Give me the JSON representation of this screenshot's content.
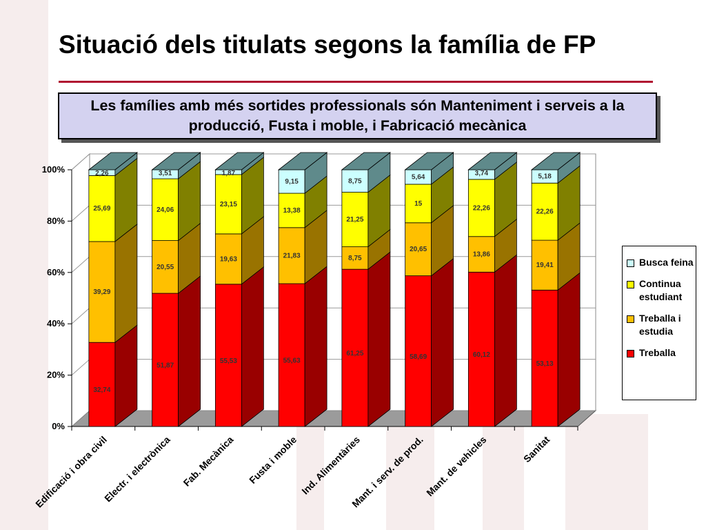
{
  "slide": {
    "title": "Situació dels titulats segons la família de FP",
    "subtitle": "Les famílies amb més sortides professionals són Manteniment i serveis a la producció, Fusta i moble, i Fabricació mecànica"
  },
  "chart_data": {
    "type": "bar",
    "stacked": "percent",
    "three_d": true,
    "categories": [
      "Edificació i obra civil",
      "Electr. i electrònica",
      "Fab. Mecànica",
      "Fusta i moble",
      "Ind. Alimentàries",
      "Mant. i serv. de prod.",
      "Mant. de vehicles",
      "Sanitat"
    ],
    "series": [
      {
        "name": "Treballa",
        "color": "#ff0000",
        "side_color": "#990000",
        "values": [
          32.74,
          51.87,
          55.53,
          55.63,
          61.25,
          58.69,
          60.12,
          53.13
        ],
        "labels": [
          "32,74",
          "51,87",
          "55,53",
          "55,63",
          "61,25",
          "58,69",
          "60,12",
          "53,13"
        ]
      },
      {
        "name": "Treballa i estudia",
        "color": "#ffc000",
        "side_color": "#997300",
        "values": [
          39.29,
          20.55,
          19.63,
          21.83,
          8.75,
          20.65,
          13.86,
          19.41
        ],
        "labels": [
          "39,29",
          "20,55",
          "19,63",
          "21,83",
          "8,75",
          "20,65",
          "13,86",
          "19,41"
        ]
      },
      {
        "name": "Continua estudiant",
        "color": "#ffff00",
        "side_color": "#808000",
        "values": [
          25.69,
          24.06,
          23.15,
          13.38,
          21.25,
          15,
          22.26,
          22.26
        ],
        "labels": [
          "25,69",
          "24,06",
          "23,15",
          "13,38",
          "21,25",
          "15",
          "22,26",
          "22,26"
        ]
      },
      {
        "name": "Busca feina",
        "color": "#ccffff",
        "side_color": "#5f8a8b",
        "values": [
          2.26,
          3.51,
          1.87,
          9.15,
          8.75,
          5.64,
          3.74,
          5.18
        ],
        "labels": [
          "2,26",
          "3,51",
          "1,87",
          "9,15",
          "8,75",
          "5,64",
          "3,74",
          "5,18"
        ]
      }
    ],
    "legend_order": [
      "Busca feina",
      "Continua estudiant",
      "Treballa i estudia",
      "Treballa"
    ],
    "yticks": [
      "0%",
      "20%",
      "40%",
      "60%",
      "80%",
      "100%"
    ],
    "ylim": [
      0,
      100
    ],
    "legend_position": "right",
    "grid": true
  }
}
